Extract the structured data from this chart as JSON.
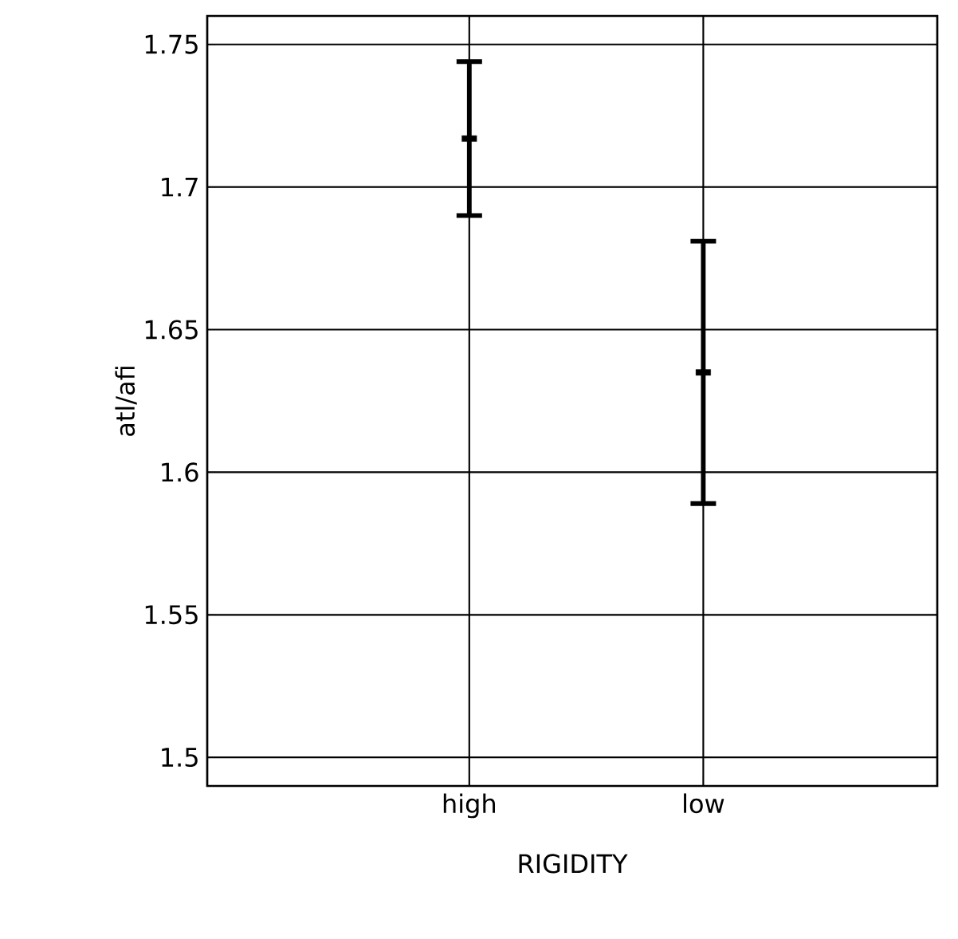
{
  "chart_data": {
    "type": "scatter",
    "xlabel": "RIGIDITY",
    "ylabel": "atl/afi",
    "categories": [
      "high",
      "low"
    ],
    "series": [
      {
        "color": "#000000",
        "values": [
          1.717,
          1.635
        ],
        "errors": [
          0.027,
          0.046
        ]
      }
    ],
    "ylim": [
      1.49,
      1.76
    ],
    "yticks": [
      1.5,
      1.55,
      1.6,
      1.65,
      1.7,
      1.75
    ],
    "grid": true,
    "marker": "square"
  }
}
